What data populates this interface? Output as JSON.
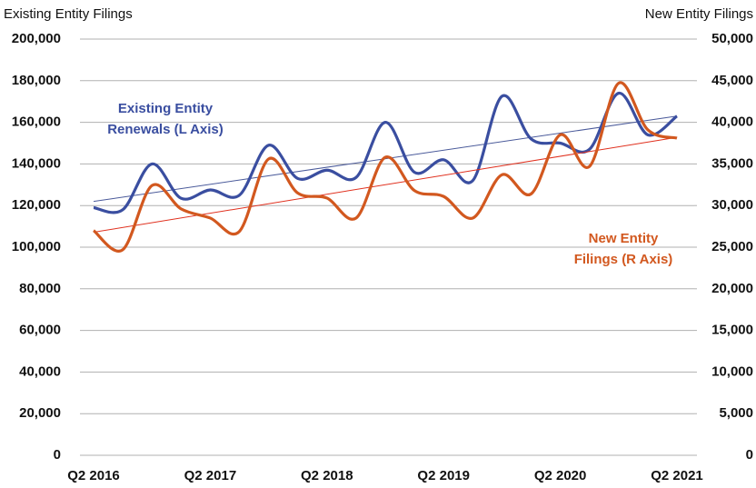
{
  "chart_data": {
    "type": "line",
    "y_title": "Existing Entity Filings",
    "y2_title": "New Entity Filings",
    "categories": [
      "Q2 2016",
      null,
      null,
      null,
      "Q2 2017",
      null,
      null,
      null,
      "Q2 2018",
      null,
      null,
      null,
      "Q2 2019",
      null,
      null,
      null,
      "Q2 2020",
      null,
      null,
      null,
      "Q2 2021"
    ],
    "series": [
      {
        "name": "Existing Entity Filings",
        "color": "#3a4ea0",
        "axis": "y",
        "values": [
          119000,
          118000,
          140000,
          123500,
          127500,
          125000,
          149000,
          133000,
          137000,
          133500,
          160000,
          136000,
          142000,
          132000,
          172500,
          152000,
          150000,
          147000,
          174000,
          154000,
          163000
        ],
        "trend": [
          122000,
          163000
        ],
        "trend_color": "#4a5a9a",
        "annotation": [
          "Existing Entity",
          "Renewals (L Axis)"
        ]
      },
      {
        "name": "New Entity Filings",
        "color": "#d2581f",
        "axis": "y2",
        "values": [
          27000,
          24700,
          32400,
          29600,
          28500,
          26900,
          35600,
          31500,
          30900,
          28500,
          35800,
          31800,
          31100,
          28500,
          33700,
          31400,
          38500,
          34700,
          44700,
          39100,
          38100
        ],
        "trend": [
          26800,
          38200
        ],
        "trend_color": "#e0301e",
        "annotation": [
          "New Entity",
          "Filings (R Axis)"
        ]
      }
    ],
    "ylim": [
      0,
      200000
    ],
    "yticks": [
      0,
      {
        "value": 20000,
        "label": "20,000"
      },
      {
        "value": 40000,
        "label": "40,000"
      },
      {
        "value": 60000,
        "label": "60,000"
      },
      {
        "value": 80000,
        "label": "80,000"
      },
      {
        "value": 100000,
        "label": "100,000"
      },
      {
        "value": 120000,
        "label": "120,000"
      },
      {
        "value": 140000,
        "label": "140,000"
      },
      {
        "value": 160000,
        "label": "160,000"
      },
      {
        "value": 180000,
        "label": "180,000"
      },
      {
        "value": 200000,
        "label": "200,000"
      }
    ],
    "y2lim": [
      0,
      50000
    ],
    "y2ticks": [
      0,
      {
        "value": 5000,
        "label": "5,000"
      },
      {
        "value": 10000,
        "label": "10,000"
      },
      {
        "value": 15000,
        "label": "15,000"
      },
      {
        "value": 20000,
        "label": "20,000"
      },
      {
        "value": 25000,
        "label": "25,000"
      },
      {
        "value": 30000,
        "label": "30,000"
      },
      {
        "value": 35000,
        "label": "35,000"
      },
      {
        "value": 40000,
        "label": "40,000"
      },
      {
        "value": 45000,
        "label": "45,000"
      },
      {
        "value": 50000,
        "label": "50,000"
      }
    ],
    "grid": true
  }
}
